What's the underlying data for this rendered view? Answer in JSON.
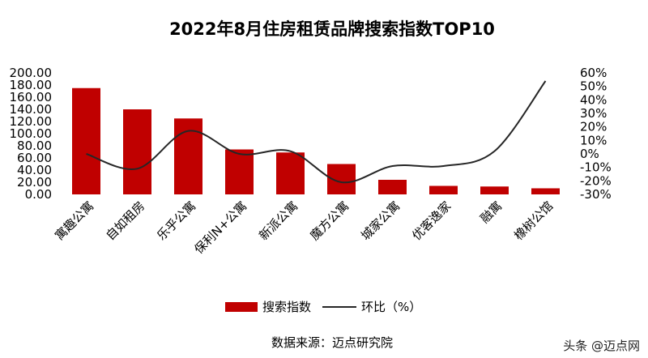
{
  "chart_data": {
    "type": "bar",
    "title": "2022年8月住房租赁品牌搜索指数TOP10",
    "categories": [
      "寓趣公寓",
      "自如租房",
      "乐乎公寓",
      "保利N+公寓",
      "新派公寓",
      "魔方公寓",
      "城家公寓",
      "优客逸家",
      "融寓",
      "橡树公馆"
    ],
    "series": [
      {
        "name": "搜索指数",
        "axis": "left",
        "kind": "bar",
        "color": "#c00000",
        "values": [
          175,
          140,
          125,
          74,
          69,
          50,
          24,
          14,
          13,
          10
        ]
      },
      {
        "name": "环比（%）",
        "axis": "right",
        "kind": "line",
        "color": "#262626",
        "values": [
          0,
          -11,
          17,
          0,
          2,
          -21,
          -9,
          -9,
          2,
          54
        ]
      }
    ],
    "y_left": {
      "min": 0,
      "max": 200,
      "step": 20,
      "decimals": 2
    },
    "y_right": {
      "min": -30,
      "max": 60,
      "step": 10
    },
    "legend_position": "bottom",
    "grid": false,
    "source": "数据来源：迈点研究院",
    "watermark": "头条 @迈点网"
  }
}
